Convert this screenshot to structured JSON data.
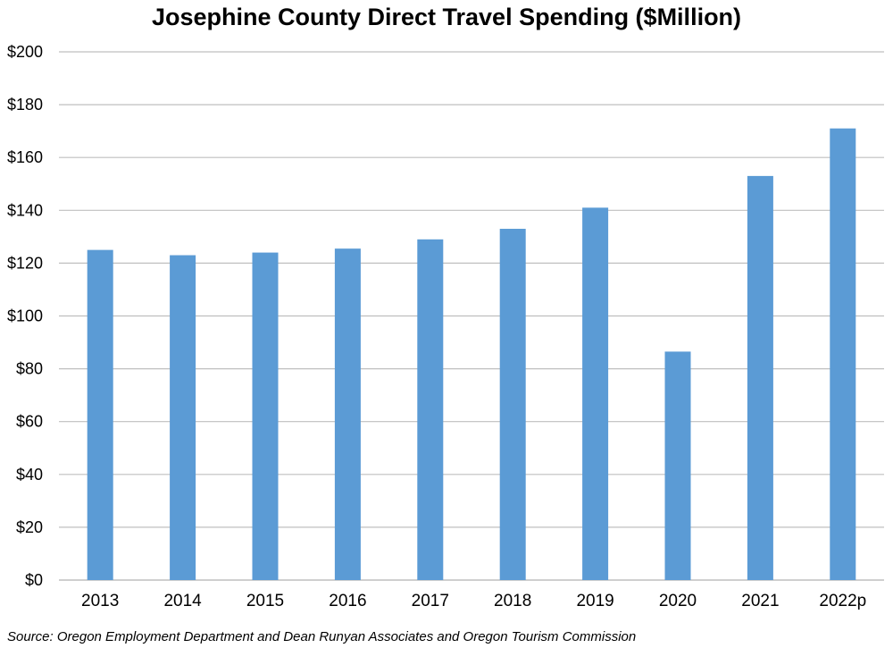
{
  "chart_data": {
    "type": "bar",
    "title": "Josephine County Direct Travel Spending ($Million)",
    "categories": [
      "2013",
      "2014",
      "2015",
      "2016",
      "2017",
      "2018",
      "2019",
      "2020",
      "2021",
      "2022p"
    ],
    "values": [
      125,
      123,
      124,
      125.5,
      129,
      133,
      141,
      86.5,
      153,
      171
    ],
    "ylim": [
      0,
      200
    ],
    "yticks": [
      "$0",
      "$20",
      "$40",
      "$60",
      "$80",
      "$100",
      "$120",
      "$140",
      "$160",
      "$180",
      "$200"
    ],
    "xlabel": "",
    "ylabel": "",
    "grid": true,
    "legend": "none",
    "bar_color": "#5b9bd5",
    "gridline_color": "#bfbfbf"
  },
  "source": "Source: Oregon Employment Department and Dean Runyan Associates and Oregon Tourism Commission"
}
